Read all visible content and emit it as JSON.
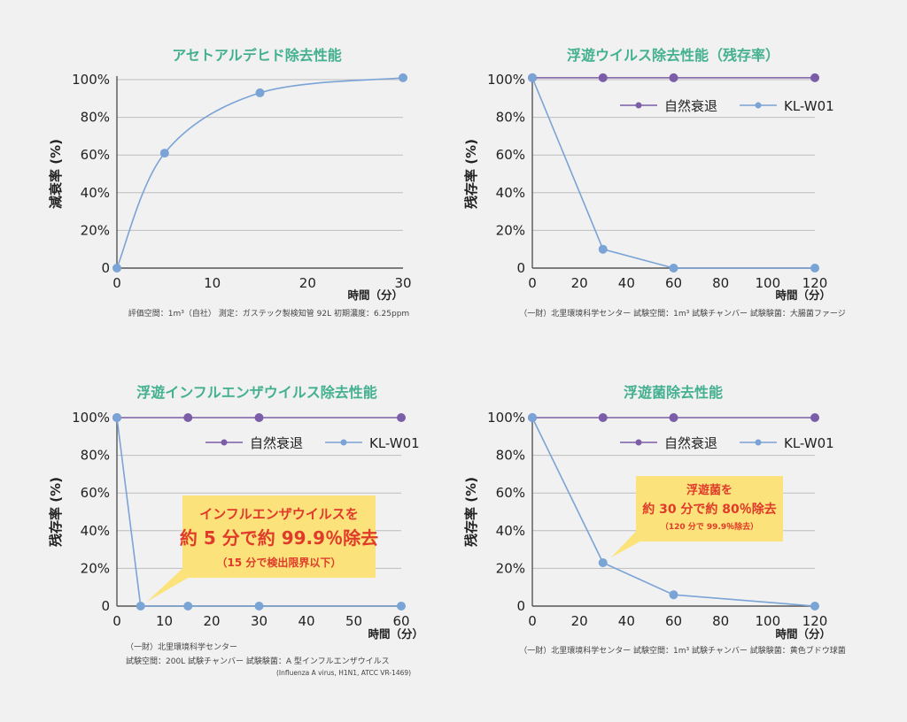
{
  "chart_data": [
    {
      "type": "line",
      "title": "アセトアルデヒド除去性能",
      "ylabel": "減衰率 (%)",
      "xlabel": "時間（分）",
      "xlim": [
        0,
        30
      ],
      "ylim": [
        0,
        100
      ],
      "x_ticks": [
        "0",
        "10",
        "20",
        "30"
      ],
      "y_ticks": [
        "0",
        "20%",
        "40%",
        "60%",
        "80%",
        "100%"
      ],
      "grid": true,
      "series": [
        {
          "name": "",
          "color": "#7aa3d6",
          "x": [
            0,
            5,
            15,
            30
          ],
          "y": [
            0,
            61,
            93,
            101
          ],
          "smooth": true
        }
      ],
      "note": "評価空間：1m³（自社）  測定：ガステック製検知管 92L   初期濃度：6.25ppm"
    },
    {
      "type": "line",
      "title": "浮遊ウイルス除去性能（残存率）",
      "ylabel": "残存率 (%)",
      "xlabel": "時間（分）",
      "xlim": [
        0,
        120
      ],
      "ylim": [
        0,
        100
      ],
      "x_ticks": [
        "0",
        "20",
        "40",
        "60",
        "80",
        "100",
        "120"
      ],
      "y_ticks": [
        "0",
        "20%",
        "40%",
        "60%",
        "80%",
        "100%"
      ],
      "grid": true,
      "legend": "top-right",
      "series": [
        {
          "name": "自然衰退",
          "color": "#7b5ea7",
          "x": [
            0,
            30,
            60,
            120
          ],
          "y": [
            101,
            101,
            101,
            101
          ]
        },
        {
          "name": "KL-W01",
          "color": "#7aa3d6",
          "x": [
            0,
            30,
            60,
            120
          ],
          "y": [
            101,
            10,
            0,
            0
          ]
        }
      ],
      "note": "（一財）北里環境科学センター   試験空間：1m³ 試験チャンバー   試験験菌：大腸菌ファージ"
    },
    {
      "type": "line",
      "title": "浮遊インフルエンザウイルス除去性能",
      "ylabel": "残存率 (%)",
      "xlabel": "時間（分）",
      "xlim": [
        0,
        60
      ],
      "ylim": [
        0,
        100
      ],
      "x_ticks": [
        "0",
        "10",
        "20",
        "30",
        "40",
        "50",
        "60"
      ],
      "y_ticks": [
        "0",
        "20%",
        "40%",
        "60%",
        "80%",
        "100%"
      ],
      "grid": true,
      "legend": "top-right",
      "series": [
        {
          "name": "自然衰退",
          "color": "#7b5ea7",
          "x": [
            0,
            15,
            30,
            60
          ],
          "y": [
            100,
            100,
            100,
            100
          ]
        },
        {
          "name": "KL-W01",
          "color": "#7aa3d6",
          "x": [
            0,
            5,
            15,
            30,
            60
          ],
          "y": [
            100,
            0,
            0,
            0,
            0
          ]
        }
      ],
      "callout": {
        "line1": "インフルエンザウイルスを",
        "line2": "約 5 分で約 99.9％除去",
        "line3": "（15 分で検出限界以下）"
      },
      "note_lines": [
        "（一財）北里環境科学センター",
        "試験空間：200L 試験チャンバー   試験験菌：A 型インフルエンザウイルス",
        "(Influenza A virus, H1N1, ATCC VR-1469)"
      ]
    },
    {
      "type": "line",
      "title": "浮遊菌除去性能",
      "ylabel": "残存率 (%)",
      "xlabel": "時間（分）",
      "xlim": [
        0,
        120
      ],
      "ylim": [
        0,
        100
      ],
      "x_ticks": [
        "0",
        "20",
        "40",
        "60",
        "80",
        "100",
        "120"
      ],
      "y_ticks": [
        "0",
        "20%",
        "40%",
        "60%",
        "80%",
        "100%"
      ],
      "grid": true,
      "legend": "top-right",
      "series": [
        {
          "name": "自然衰退",
          "color": "#7b5ea7",
          "x": [
            0,
            30,
            60,
            120
          ],
          "y": [
            100,
            100,
            100,
            100
          ]
        },
        {
          "name": "KL-W01",
          "color": "#7aa3d6",
          "x": [
            0,
            30,
            60,
            120
          ],
          "y": [
            100,
            23,
            6,
            0
          ]
        }
      ],
      "callout": {
        "line1": "浮遊菌を",
        "line2": "約 30 分で約 80％除去",
        "line3": "（120 分で 99.9％除去）"
      },
      "note": "（一財）北里環境科学センター   試験空間：1m³ 試験チャンバー   試験験菌：黄色ブドウ球菌"
    }
  ]
}
